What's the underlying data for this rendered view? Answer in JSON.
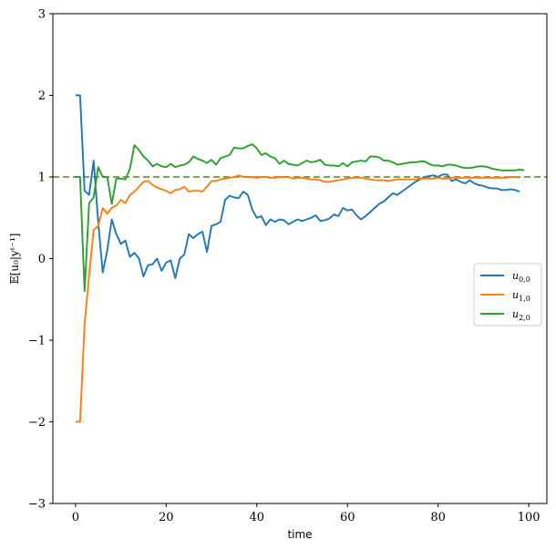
{
  "chart_data": {
    "type": "line",
    "xlabel": "time",
    "ylabel": "𝔼[u₀|yᵗ⁻¹]",
    "xlim": [
      -5,
      104
    ],
    "ylim": [
      -3,
      3
    ],
    "xticks": [
      0,
      20,
      40,
      60,
      80,
      100
    ],
    "yticks": [
      -3,
      -2,
      -1,
      0,
      1,
      2,
      3
    ],
    "ytick_labels": [
      "−3",
      "−2",
      "−1",
      "0",
      "1",
      "2",
      "3"
    ],
    "grid": false,
    "legend_position": "center-right",
    "reference_line": {
      "y": 1,
      "style": "dashed",
      "color": "#6a9a3a"
    },
    "series": [
      {
        "name": "u0,0",
        "color": "#1f77b4",
        "values": [
          2.0,
          2.0,
          0.83,
          0.78,
          1.2,
          0.45,
          -0.17,
          0.1,
          0.48,
          0.3,
          0.18,
          0.22,
          0.02,
          0.07,
          0.0,
          -0.22,
          -0.08,
          -0.07,
          0.0,
          -0.15,
          -0.05,
          -0.02,
          -0.24,
          0.0,
          0.05,
          0.3,
          0.25,
          0.3,
          0.33,
          0.08,
          0.4,
          0.42,
          0.45,
          0.72,
          0.77,
          0.75,
          0.74,
          0.82,
          0.78,
          0.6,
          0.5,
          0.52,
          0.41,
          0.48,
          0.45,
          0.48,
          0.47,
          0.42,
          0.45,
          0.48,
          0.46,
          0.48,
          0.5,
          0.53,
          0.46,
          0.47,
          0.49,
          0.54,
          0.52,
          0.62,
          0.59,
          0.6,
          0.53,
          0.48,
          0.52,
          0.57,
          0.62,
          0.67,
          0.7,
          0.75,
          0.8,
          0.78,
          0.82,
          0.86,
          0.9,
          0.94,
          0.97,
          1.0,
          1.01,
          1.02,
          1.0,
          1.03,
          1.03,
          0.95,
          0.97,
          0.94,
          0.92,
          0.96,
          0.92,
          0.9,
          0.89,
          0.87,
          0.86,
          0.86,
          0.84,
          0.84,
          0.85,
          0.84,
          0.82
        ],
        "x": [
          0,
          1,
          2,
          3,
          4,
          5,
          6,
          7,
          8,
          9,
          10,
          11,
          12,
          13,
          14,
          15,
          16,
          17,
          18,
          19,
          20,
          21,
          22,
          23,
          24,
          25,
          26,
          27,
          28,
          29,
          30,
          31,
          32,
          33,
          34,
          35,
          36,
          37,
          38,
          39,
          40,
          41,
          42,
          43,
          44,
          45,
          46,
          47,
          48,
          49,
          50,
          51,
          52,
          53,
          54,
          55,
          56,
          57,
          58,
          59,
          60,
          61,
          62,
          63,
          64,
          65,
          66,
          67,
          68,
          69,
          70,
          71,
          72,
          73,
          74,
          75,
          76,
          77,
          78,
          79,
          80,
          81,
          82,
          83,
          84,
          85,
          86,
          87,
          88,
          89,
          90,
          91,
          92,
          93,
          94,
          95,
          96,
          97,
          98
        ]
      },
      {
        "name": "u1,0",
        "color": "#ff7f0e",
        "values": [
          -2.0,
          -2.0,
          -0.8,
          -0.2,
          0.35,
          0.4,
          0.62,
          0.55,
          0.62,
          0.65,
          0.72,
          0.68,
          0.78,
          0.82,
          0.88,
          0.94,
          0.95,
          0.9,
          0.87,
          0.85,
          0.83,
          0.8,
          0.84,
          0.85,
          0.88,
          0.82,
          0.83,
          0.83,
          0.82,
          0.88,
          0.95,
          0.95,
          0.97,
          0.98,
          0.99,
          1.0,
          1.02,
          1.0,
          1.0,
          1.0,
          0.99,
          1.0,
          1.0,
          0.99,
          0.99,
          1.0,
          1.0,
          1.0,
          0.98,
          0.99,
          0.99,
          0.98,
          0.97,
          0.97,
          0.96,
          0.94,
          0.94,
          0.95,
          0.96,
          0.97,
          0.98,
          0.99,
          0.99,
          0.99,
          0.98,
          0.97,
          0.96,
          0.96,
          0.96,
          0.95,
          0.96,
          0.97,
          0.97,
          0.97,
          0.97,
          0.97,
          0.98,
          0.98,
          0.98,
          0.98,
          0.99,
          0.98,
          0.98,
          0.99,
          0.99,
          0.99,
          0.99,
          0.99,
          0.99,
          0.99,
          0.99,
          0.99,
          0.99,
          0.99,
          0.99,
          0.99,
          1.0,
          1.0,
          0.99
        ],
        "x": [
          0,
          1,
          2,
          3,
          4,
          5,
          6,
          7,
          8,
          9,
          10,
          11,
          12,
          13,
          14,
          15,
          16,
          17,
          18,
          19,
          20,
          21,
          22,
          23,
          24,
          25,
          26,
          27,
          28,
          29,
          30,
          31,
          32,
          33,
          34,
          35,
          36,
          37,
          38,
          39,
          40,
          41,
          42,
          43,
          44,
          45,
          46,
          47,
          48,
          49,
          50,
          51,
          52,
          53,
          54,
          55,
          56,
          57,
          58,
          59,
          60,
          61,
          62,
          63,
          64,
          65,
          66,
          67,
          68,
          69,
          70,
          71,
          72,
          73,
          74,
          75,
          76,
          77,
          78,
          79,
          80,
          81,
          82,
          83,
          84,
          85,
          86,
          87,
          88,
          89,
          90,
          91,
          92,
          93,
          94,
          95,
          96,
          97,
          98
        ]
      },
      {
        "name": "u2,0",
        "color": "#2ca02c",
        "values": [
          1.0,
          1.0,
          -0.4,
          0.68,
          0.75,
          1.12,
          1.0,
          1.0,
          0.67,
          0.98,
          0.98,
          0.97,
          1.1,
          1.39,
          1.33,
          1.25,
          1.2,
          1.13,
          1.16,
          1.13,
          1.12,
          1.16,
          1.12,
          1.14,
          1.15,
          1.18,
          1.25,
          1.22,
          1.2,
          1.17,
          1.21,
          1.15,
          1.23,
          1.25,
          1.27,
          1.36,
          1.35,
          1.35,
          1.38,
          1.4,
          1.35,
          1.27,
          1.29,
          1.25,
          1.23,
          1.16,
          1.2,
          1.16,
          1.15,
          1.14,
          1.17,
          1.2,
          1.18,
          1.19,
          1.21,
          1.15,
          1.14,
          1.14,
          1.13,
          1.17,
          1.13,
          1.18,
          1.19,
          1.2,
          1.19,
          1.25,
          1.25,
          1.24,
          1.2,
          1.2,
          1.18,
          1.15,
          1.16,
          1.17,
          1.18,
          1.18,
          1.19,
          1.19,
          1.16,
          1.14,
          1.14,
          1.13,
          1.15,
          1.15,
          1.14,
          1.12,
          1.11,
          1.11,
          1.12,
          1.13,
          1.13,
          1.12,
          1.1,
          1.09,
          1.08,
          1.08,
          1.08,
          1.08,
          1.09,
          1.08
        ],
        "x": [
          0,
          1,
          2,
          3,
          4,
          5,
          6,
          7,
          8,
          9,
          10,
          11,
          12,
          13,
          14,
          15,
          16,
          17,
          18,
          19,
          20,
          21,
          22,
          23,
          24,
          25,
          26,
          27,
          28,
          29,
          30,
          31,
          32,
          33,
          34,
          35,
          36,
          37,
          38,
          39,
          40,
          41,
          42,
          43,
          44,
          45,
          46,
          47,
          48,
          49,
          50,
          51,
          52,
          53,
          54,
          55,
          56,
          57,
          58,
          59,
          60,
          61,
          62,
          63,
          64,
          65,
          66,
          67,
          68,
          69,
          70,
          71,
          72,
          73,
          74,
          75,
          76,
          77,
          78,
          79,
          80,
          81,
          82,
          83,
          84,
          85,
          86,
          87,
          88,
          89,
          90,
          91,
          92,
          93,
          94,
          95,
          96,
          97,
          98,
          99
        ]
      }
    ]
  }
}
